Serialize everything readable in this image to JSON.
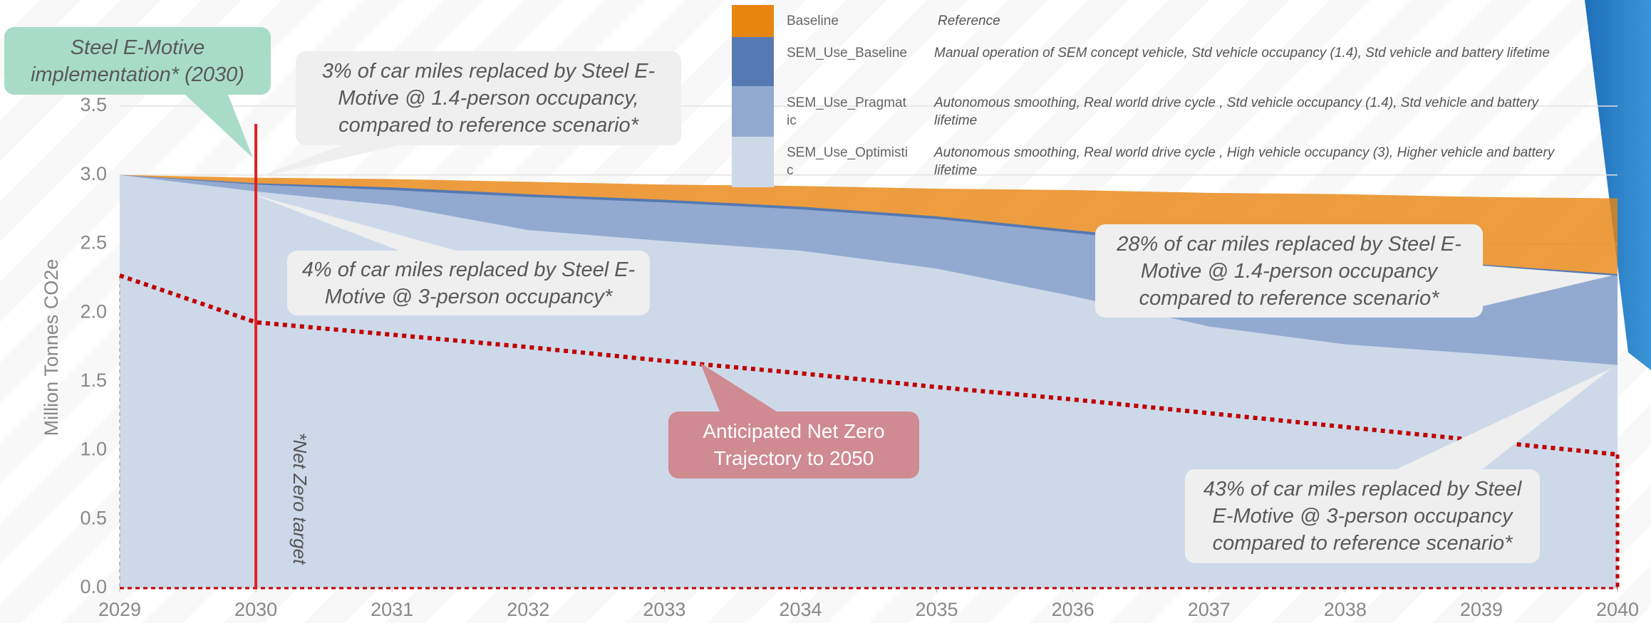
{
  "chart_data": {
    "type": "area",
    "y_label": "Million Tonnes CO2e",
    "x": [
      2029,
      2030,
      2031,
      2032,
      2033,
      2034,
      2035,
      2036,
      2037,
      2038,
      2039,
      2040
    ],
    "xlim": [
      2029,
      2040
    ],
    "xticks": [
      2029,
      2030,
      2031,
      2032,
      2033,
      2034,
      2035,
      2036,
      2037,
      2038,
      2039,
      2040
    ],
    "ylim": [
      0,
      3.5
    ],
    "yticks": [
      {
        "value": 0,
        "label": "0.0"
      },
      0.5,
      {
        "value": 1,
        "label": "1.0"
      },
      1.5,
      {
        "value": 2,
        "label": "2.0"
      },
      2.5,
      {
        "value": 3,
        "label": "3.0"
      },
      3.5
    ],
    "grid": true,
    "series": [
      {
        "name": "Baseline",
        "description": "Reference",
        "color": "#e8850f",
        "values": [
          3.0,
          2.98,
          2.97,
          2.95,
          2.93,
          2.92,
          2.9,
          2.89,
          2.87,
          2.86,
          2.84,
          2.83
        ]
      },
      {
        "name": "SEM_Use_Baseline",
        "description": "Manual operation of SEM concept vehicle, Std vehicle occupancy (1.4), Std vehicle and battery lifetime",
        "color": "#5679b1",
        "values": [
          3.0,
          2.94,
          2.91,
          2.86,
          2.82,
          2.77,
          2.7,
          2.6,
          2.5,
          2.42,
          2.35,
          2.28
        ]
      },
      {
        "name": "SEM_Use_Pragmatic",
        "description": "Autonomous smoothing, Real world drive cycle , Std vehicle occupancy (1.4), Std vehicle and battery lifetime",
        "color": "#92aad0",
        "values": [
          3.0,
          2.93,
          2.89,
          2.84,
          2.8,
          2.75,
          2.68,
          2.58,
          2.48,
          2.4,
          2.33,
          2.27
        ]
      },
      {
        "name": "SEM_Use_Optimistic",
        "description": "Autonomous smoothing, Real world drive cycle , High vehicle occupancy (3), Higher vehicle and battery lifetime",
        "color": "#cdd9e9",
        "values": [
          3.0,
          2.88,
          2.78,
          2.6,
          2.52,
          2.45,
          2.32,
          2.12,
          1.9,
          1.77,
          1.7,
          1.62
        ]
      }
    ],
    "trajectory": {
      "color": "#c00000",
      "values": [
        2.27,
        1.93,
        1.84,
        1.75,
        1.65,
        1.56,
        1.46,
        1.37,
        1.27,
        1.17,
        1.07,
        0.97
      ]
    },
    "net_zero_target": {
      "label": "*Net Zero target",
      "x": 2030,
      "color": "#e02020"
    },
    "annotations": [
      {
        "text": "Steel E-Motive implementation* (2030)"
      },
      {
        "text": "3% of car miles replaced by Steel E-Motive @ 1.4-person occupancy, compared to reference scenario*"
      },
      {
        "text": "4% of car miles replaced by Steel E-Motive @ 3-person occupancy*"
      },
      {
        "text": "28% of car miles replaced by Steel E-Motive @ 1.4-person occupancy compared to reference scenario*"
      },
      {
        "text": "43% of car miles replaced by Steel E-Motive @ 3-person occupancy compared to reference scenario*"
      },
      {
        "text": "Anticipated Net Zero Trajectory to 2050"
      }
    ]
  }
}
